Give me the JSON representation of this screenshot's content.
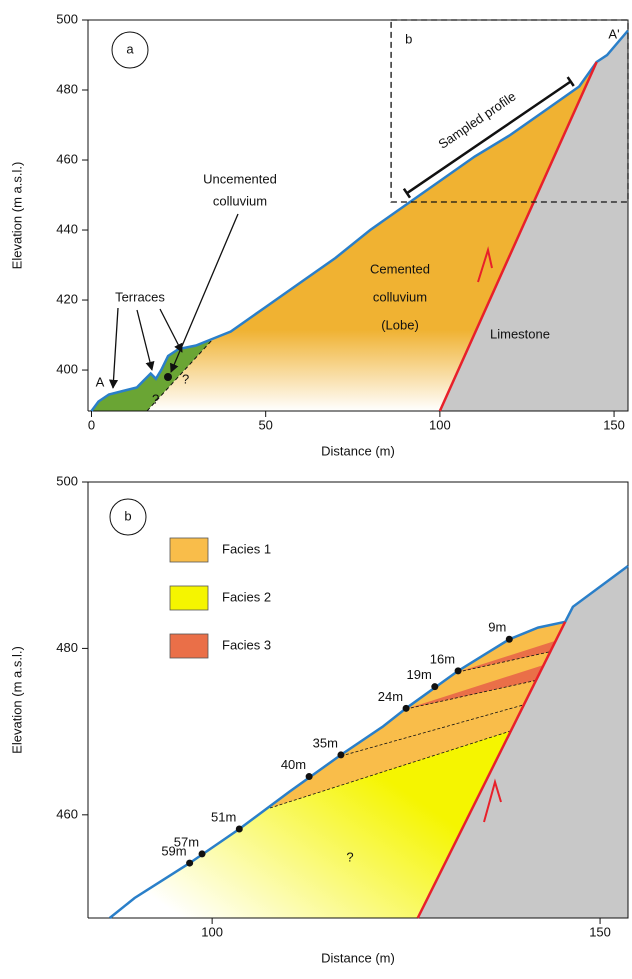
{
  "chart_data": [
    {
      "type": "cross-section",
      "panel_label": "a",
      "xlabel": "Distance (m)",
      "ylabel": "Elevation (m a.s.l.)",
      "xlim": [
        -1,
        154
      ],
      "ylim": [
        388.3,
        500
      ],
      "xticks": [
        0,
        50,
        100,
        150
      ],
      "yticks": [
        400,
        420,
        440,
        460,
        480,
        500
      ],
      "profile": {
        "color": "#2a7fc9",
        "x": [
          0,
          2,
          5,
          9,
          13,
          15,
          17,
          18.5,
          20,
          22,
          25,
          30,
          35,
          40,
          50,
          60,
          70,
          80,
          90,
          100,
          110,
          120,
          130,
          140,
          145,
          148,
          154
        ],
        "values": [
          388.3,
          391,
          393,
          394,
          395,
          397,
          399,
          397.5,
          400,
          404,
          406,
          407,
          409,
          411,
          418,
          425,
          432,
          440,
          447,
          454,
          461,
          467,
          474,
          481,
          488,
          490,
          497
        ]
      },
      "fault": {
        "color": "#e8202a",
        "x": [
          100,
          145
        ],
        "values": [
          388.3,
          488
        ]
      },
      "section_labels": [
        "A",
        "A'"
      ],
      "inset": {
        "label": "b",
        "xlim": [
          86,
          154
        ],
        "ylim": [
          448,
          500
        ]
      },
      "sampled_profile": {
        "label": "Sampled profile",
        "x": [
          92,
          139
        ]
      },
      "units": [
        {
          "label": [
            "Cemented",
            "colluvium",
            "(Lobe)"
          ],
          "color": "#f0b232"
        },
        {
          "label": [
            "Limestone"
          ],
          "color": "#c8c8c8"
        },
        {
          "label": [
            "Uncemented",
            "colluvium"
          ],
          "color": "#6aa534"
        }
      ],
      "annotations": [
        "Terraces",
        "?",
        "?"
      ]
    },
    {
      "type": "cross-section",
      "panel_label": "b",
      "xlabel": "Distance (m)",
      "ylabel": "Elevation (m a.s.l.)",
      "xlim": [
        84,
        153.6
      ],
      "ylim": [
        447.6,
        500
      ],
      "xticks": [
        100,
        150
      ],
      "yticks": [
        460,
        480,
        500
      ],
      "profile": {
        "color": "#2a7fc9",
        "x": [
          86.8,
          90,
          97.1,
          103.5,
          110,
          116.6,
          122,
          125,
          131.7,
          135,
          138.3,
          142,
          145.5,
          146.5,
          153.6
        ],
        "values": [
          447.6,
          450,
          454.2,
          458.3,
          462.8,
          467.2,
          470.6,
          472.8,
          477.3,
          479.2,
          481.1,
          482.5,
          483.2,
          485,
          489.9
        ]
      },
      "fault": {
        "color": "#e8202a",
        "x": [
          126.5,
          145.5
        ],
        "values": [
          447.6,
          483.2
        ]
      },
      "bedrock_color": "#c8c8c8",
      "legend": [
        {
          "name": "Facies 1",
          "color": "#f9bd4a"
        },
        {
          "name": "Facies 2",
          "color": "#f5f500"
        },
        {
          "name": "Facies 3",
          "color": "#ea6f48"
        }
      ],
      "samples": {
        "x": [
          138.3,
          131.7,
          128.7,
          125.0,
          116.6,
          112.5,
          103.5,
          98.7,
          97.1
        ],
        "values": [
          481.1,
          477.3,
          475.4,
          472.8,
          467.2,
          464.6,
          458.3,
          455.3,
          454.2
        ],
        "labels": [
          "9m",
          "16m",
          "19m",
          "24m",
          "35m",
          "40m",
          "51m",
          "57m",
          "59m"
        ]
      },
      "annotations": [
        "?"
      ]
    }
  ]
}
